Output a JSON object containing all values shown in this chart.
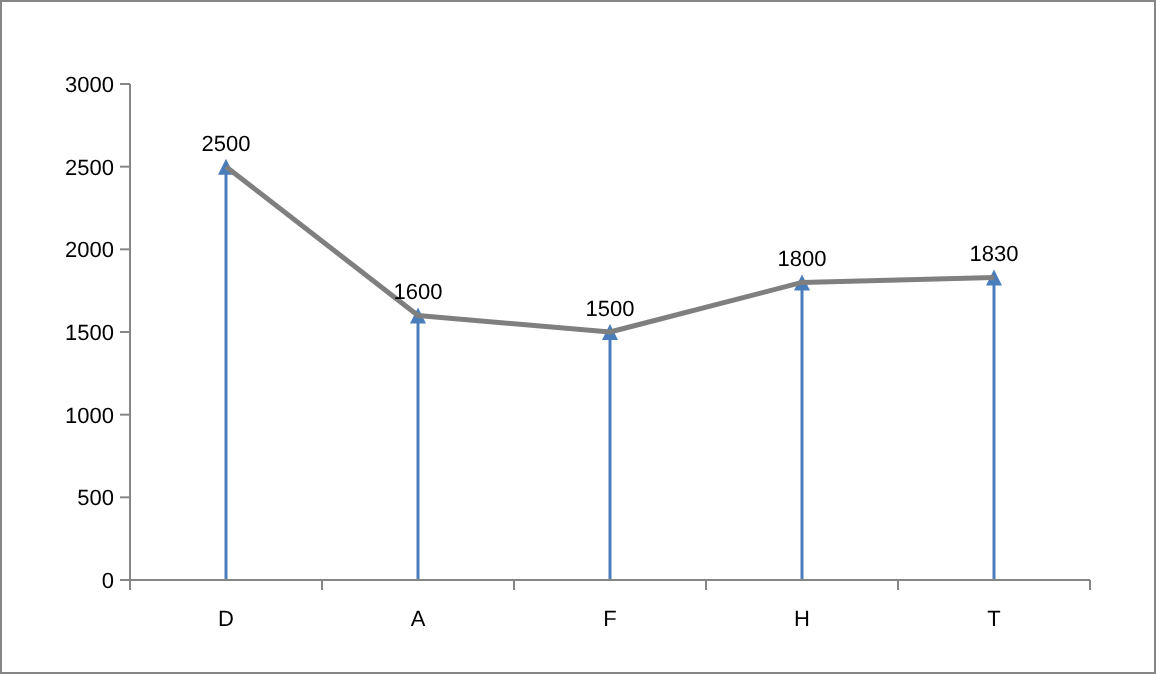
{
  "chart_data": {
    "type": "line",
    "categories": [
      "D",
      "A",
      "F",
      "H",
      "T"
    ],
    "series": [
      {
        "type": "lollipop",
        "color": "#4a7ebb",
        "marker": "triangle",
        "values": [
          2500,
          1600,
          1500,
          1800,
          1830
        ]
      },
      {
        "color": "#7f7f7f",
        "marker": "none",
        "values": [
          2500,
          1600,
          1500,
          1800,
          1830
        ],
        "value_labels": [
          "2500",
          "1600",
          "1500",
          "1800",
          "1830"
        ]
      }
    ],
    "ylim": [
      0,
      3000
    ],
    "yticks": [
      0,
      500,
      1000,
      1500,
      2000,
      2500,
      3000
    ],
    "grid": false,
    "line_style": "solid"
  }
}
